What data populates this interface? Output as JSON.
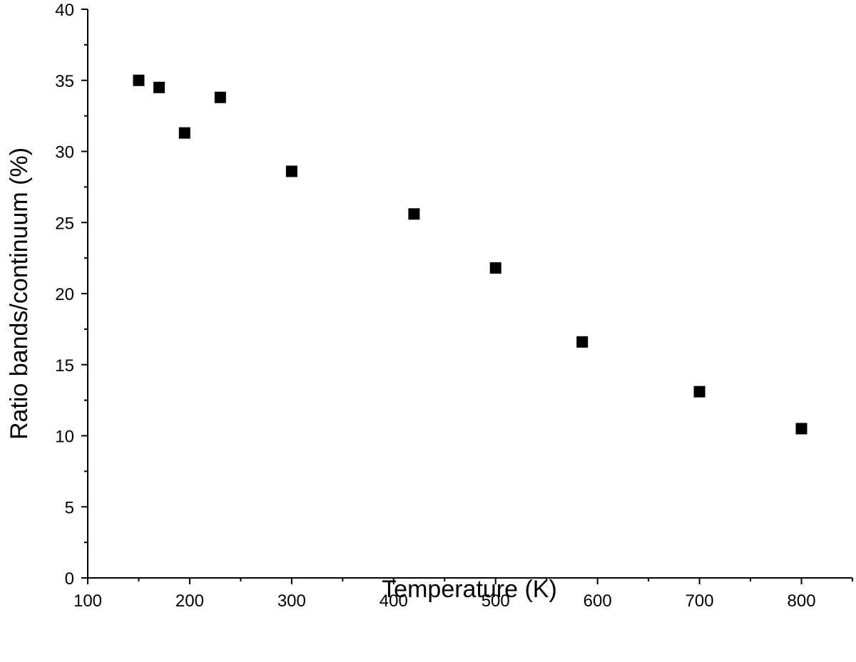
{
  "chart_data": {
    "type": "scatter",
    "title": "",
    "xlabel": "Temperature (K)",
    "ylabel": "Ratio bands/continuum (%)",
    "xlim": [
      100,
      850
    ],
    "ylim": [
      0,
      40
    ],
    "x_ticks": [
      100,
      200,
      300,
      400,
      500,
      600,
      700,
      800
    ],
    "x_minor_ticks": [
      150,
      250,
      350,
      450,
      550,
      650,
      750,
      850
    ],
    "y_ticks": [
      0,
      5,
      10,
      15,
      20,
      25,
      30,
      35,
      40
    ],
    "y_minor_ticks": [
      2.5,
      7.5,
      12.5,
      17.5,
      22.5,
      27.5,
      32.5,
      37.5
    ],
    "grid": false,
    "marker": "square",
    "color": "#000000",
    "series": [
      {
        "points": [
          {
            "x": 150,
            "y": 35.0
          },
          {
            "x": 170,
            "y": 34.5
          },
          {
            "x": 195,
            "y": 31.3
          },
          {
            "x": 230,
            "y": 33.8
          },
          {
            "x": 300,
            "y": 28.6
          },
          {
            "x": 420,
            "y": 25.6
          },
          {
            "x": 500,
            "y": 21.8
          },
          {
            "x": 585,
            "y": 16.6
          },
          {
            "x": 700,
            "y": 13.1
          },
          {
            "x": 800,
            "y": 10.5
          }
        ]
      }
    ]
  }
}
